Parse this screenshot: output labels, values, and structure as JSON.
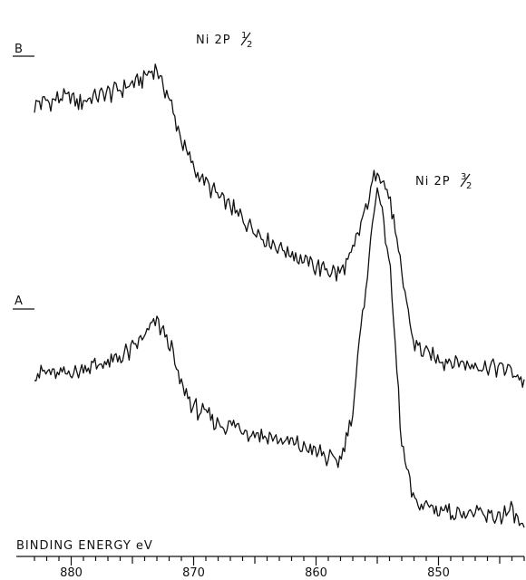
{
  "chart_data": {
    "type": "line",
    "title": "",
    "xlabel": "BINDING ENERGY  eV",
    "ylabel": "",
    "xlim": [
      883,
      843
    ],
    "x_reversed": true,
    "grid": false,
    "legend": "none",
    "x_ticks": [
      880,
      870,
      860,
      850
    ],
    "series": [
      {
        "name": "B",
        "peak_annotation": "Ni 2P 1/2",
        "x": [
          883,
          881,
          879,
          877,
          875,
          874,
          873,
          872,
          871,
          870,
          868,
          866,
          864,
          862,
          860,
          859,
          858,
          857,
          856,
          855,
          854,
          853,
          852,
          850,
          848,
          846,
          844,
          843
        ],
        "y": [
          0.78,
          0.8,
          0.79,
          0.81,
          0.84,
          0.86,
          0.88,
          0.8,
          0.68,
          0.6,
          0.52,
          0.46,
          0.4,
          0.36,
          0.32,
          0.31,
          0.3,
          0.36,
          0.48,
          0.6,
          0.52,
          0.3,
          0.1,
          0.06,
          0.05,
          0.04,
          0.03,
          0.0
        ]
      },
      {
        "name": "A",
        "peak_annotation": "Ni 2P 3/2",
        "x": [
          883,
          881,
          879,
          877,
          875,
          874,
          873,
          872,
          871,
          870,
          868,
          866,
          864,
          862,
          860,
          859,
          858,
          857,
          856,
          855,
          854,
          853,
          852,
          850,
          848,
          846,
          844,
          843
        ],
        "y": [
          0.4,
          0.39,
          0.41,
          0.42,
          0.46,
          0.5,
          0.54,
          0.48,
          0.36,
          0.3,
          0.26,
          0.24,
          0.22,
          0.2,
          0.18,
          0.16,
          0.15,
          0.3,
          0.62,
          0.92,
          0.7,
          0.2,
          0.04,
          0.02,
          0.01,
          0.0,
          0.01,
          -0.04
        ]
      }
    ]
  },
  "labels": {
    "series_b": "B",
    "series_a": "A",
    "peak_b_prefix": "Ni 2P",
    "peak_b_num": "1",
    "peak_b_den": "2",
    "peak_a_prefix": "Ni 2P",
    "peak_a_num": "3",
    "peak_a_den": "2",
    "axis_title": "BINDING ENERGY  eV"
  }
}
